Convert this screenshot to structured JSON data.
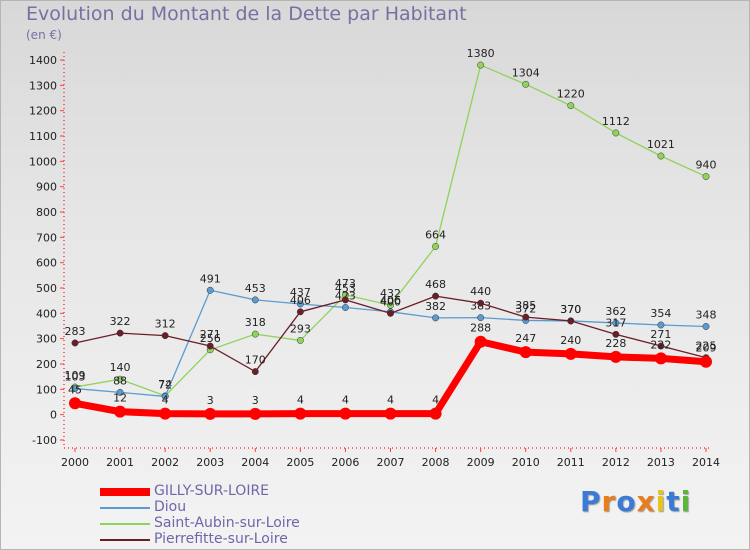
{
  "title": "Evolution du Montant de la Dette par Habitant",
  "unit": "(en €)",
  "brand": {
    "text": "Proxiti",
    "letter_colors": [
      "#3a7bd5",
      "#e87d1e",
      "#3a7bd5",
      "#e87d1e",
      "#e8c51e",
      "#3a7bd5",
      "#5bb53a"
    ]
  },
  "chart_data": {
    "type": "line",
    "x": [
      "2000",
      "2001",
      "2002",
      "2003",
      "2004",
      "2005",
      "2006",
      "2007",
      "2008",
      "2009",
      "2010",
      "2011",
      "2012",
      "2013",
      "2014"
    ],
    "ylim": [
      -100,
      1400
    ],
    "yticks": [
      -100,
      0,
      100,
      200,
      300,
      400,
      500,
      600,
      700,
      800,
      900,
      1000,
      1100,
      1200,
      1300,
      1400
    ],
    "grid": false,
    "legend_position": "bottom-left",
    "series": [
      {
        "name": "Saint-Aubin-sur-Loire",
        "color": "#8fd35a",
        "values": [
          109,
          140,
          74,
          256,
          318,
          293,
          473,
          432,
          664,
          1380,
          1304,
          1220,
          1112,
          1021,
          940
        ]
      },
      {
        "name": "Diou",
        "color": "#5b9bd0",
        "values": [
          103,
          88,
          72,
          491,
          453,
          437,
          423,
          406,
          382,
          383,
          372,
          370,
          362,
          354,
          348
        ]
      },
      {
        "name": "Pierrefitte-sur-Loire",
        "color": "#6b1e28",
        "values": [
          283,
          322,
          312,
          271,
          170,
          406,
          453,
          400,
          468,
          440,
          385,
          370,
          317,
          271,
          225
        ]
      },
      {
        "name": "GILLY-SUR-LOIRE",
        "color": "#ff0000",
        "values": [
          45,
          12,
          4,
          3,
          3,
          4,
          4,
          4,
          4,
          288,
          247,
          240,
          228,
          222,
          209
        ]
      }
    ],
    "legend": [
      "GILLY-SUR-LOIRE",
      "Diou",
      "Saint-Aubin-sur-Loire",
      "Pierrefitte-sur-Loire"
    ]
  }
}
